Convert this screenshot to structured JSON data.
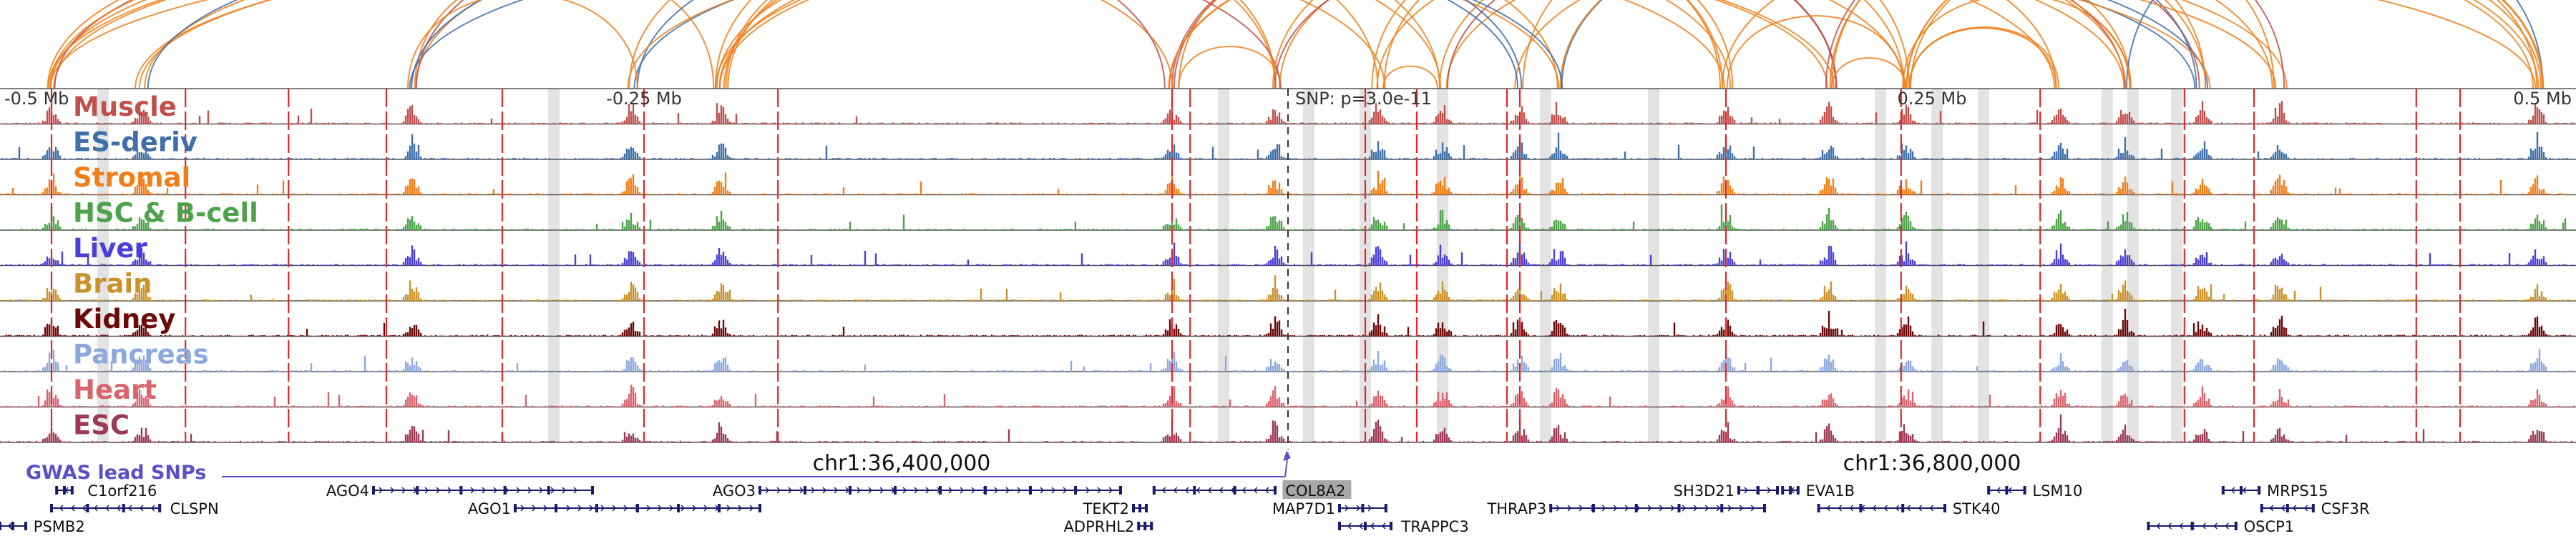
{
  "chart_data": {
    "type": "genome-browser",
    "region": {
      "chrom": "chr1",
      "start": 36050000,
      "end": 37050000
    },
    "axis_labels": [
      {
        "text": "-0.5 Mb",
        "pos": 36050000
      },
      {
        "text": "-0.25 Mb",
        "pos": 36300000
      },
      {
        "text": "0.25 Mb",
        "pos": 36800000
      },
      {
        "text": "0.5 Mb",
        "pos": 37050000
      }
    ],
    "coordinate_labels": [
      {
        "text": "chr1:36,400,000",
        "pos": 36400000
      },
      {
        "text": "chr1:36,800,000",
        "pos": 36800000
      }
    ],
    "snp": {
      "label": "SNP: p=3.0e-11",
      "pos": 36550000
    },
    "gwas_label": "GWAS lead SNPs",
    "tracks": [
      {
        "name": "Muscle",
        "color": "#c0504d"
      },
      {
        "name": "ES-deriv",
        "color": "#3f6fa8"
      },
      {
        "name": "Stromal",
        "color": "#f07f1a"
      },
      {
        "name": "HSC & B-cell",
        "color": "#4ea24a"
      },
      {
        "name": "Liver",
        "color": "#4a3fd6"
      },
      {
        "name": "Brain",
        "color": "#c9922a"
      },
      {
        "name": "Kidney",
        "color": "#6b0a0a"
      },
      {
        "name": "Pancreas",
        "color": "#8fa8dc"
      },
      {
        "name": "Heart",
        "color": "#d9646e"
      },
      {
        "name": "ESC",
        "color": "#9c3a55"
      }
    ],
    "peak_hotspots": [
      36070000,
      36105000,
      36210000,
      36295000,
      36330000,
      36505000,
      36545000,
      36585000,
      36610000,
      36640000,
      36655000,
      36720000,
      36760000,
      36790000,
      36850000,
      36875000,
      36905000,
      36935000,
      37035000
    ],
    "red_marker_positions": [
      36070000,
      36122000,
      36162000,
      36200000,
      36245000,
      36300000,
      36352000,
      36505000,
      36512000,
      36580000,
      36600000,
      36635000,
      36640000,
      36720000,
      36788000,
      36842000,
      36898000,
      36925000,
      36988000,
      37005000
    ],
    "gray_highlight_positions": [
      36090000,
      36265000,
      36525000,
      36558000,
      36580000,
      36610000,
      36650000,
      36692000,
      36780000,
      36802000,
      36820000,
      36868000,
      36878000,
      36895000
    ],
    "loop_color_primary": "#f07f1a",
    "loop_color_secondary": "#c0504d",
    "loop_color_tertiary": "#3f6fa8",
    "genes": [
      {
        "name": "C1orf216",
        "start": 36072000,
        "end": 36078000,
        "row": 1,
        "strand": "-",
        "label_at": "right",
        "label_gap": 6000
      },
      {
        "name": "AGO4",
        "start": 36195000,
        "end": 36280000,
        "row": 1,
        "strand": "+",
        "label_at": "left"
      },
      {
        "name": "AGO3",
        "start": 36345000,
        "end": 36485000,
        "row": 1,
        "strand": "+",
        "label_at": "left"
      },
      {
        "name": "COL8A2",
        "start": 36498000,
        "end": 36545000,
        "row": 1,
        "strand": "-",
        "label_at": "right",
        "label_gap": 4000,
        "highlight": true
      },
      {
        "name": "SH3D21",
        "start": 36725000,
        "end": 36740000,
        "row": 1,
        "strand": "+",
        "label_at": "left"
      },
      {
        "name": "EVA1B",
        "start": 36742000,
        "end": 36748000,
        "row": 1,
        "strand": "-",
        "label_at": "right",
        "label_gap": 3000
      },
      {
        "name": "LSM10",
        "start": 36822000,
        "end": 36836000,
        "row": 1,
        "strand": "-",
        "label_at": "right",
        "label_gap": 3000
      },
      {
        "name": "MRPS15",
        "start": 36913000,
        "end": 36927000,
        "row": 1,
        "strand": "-",
        "label_at": "right",
        "label_gap": 3000
      },
      {
        "name": "CLSPN",
        "start": 36070000,
        "end": 36112000,
        "row": 2,
        "strand": "-",
        "label_at": "right",
        "label_gap": 4000
      },
      {
        "name": "AGO1",
        "start": 36250000,
        "end": 36345000,
        "row": 2,
        "strand": "+",
        "label_at": "left"
      },
      {
        "name": "TEKT2",
        "start": 36490000,
        "end": 36495000,
        "row": 2,
        "strand": "+",
        "label_at": "left"
      },
      {
        "name": "MAP7D1",
        "start": 36570000,
        "end": 36588000,
        "row": 2,
        "strand": "+",
        "label_at": "left"
      },
      {
        "name": "THRAP3",
        "start": 36652000,
        "end": 36735000,
        "row": 2,
        "strand": "+",
        "label_at": "left"
      },
      {
        "name": "STK40",
        "start": 36756000,
        "end": 36805000,
        "row": 2,
        "strand": "-",
        "label_at": "right",
        "label_gap": 3000
      },
      {
        "name": "CSF3R",
        "start": 36928000,
        "end": 36948000,
        "row": 2,
        "strand": "-",
        "label_at": "right",
        "label_gap": 3000
      },
      {
        "name": "PSMB2",
        "start": 35820000,
        "end": 36060000,
        "row": 3,
        "strand": "-",
        "label_at": "right",
        "label_gap": 3000
      },
      {
        "name": "ADPRHL2",
        "start": 36492000,
        "end": 36497000,
        "row": 3,
        "strand": "+",
        "label_at": "left"
      },
      {
        "name": "TRAPPC3",
        "start": 36570000,
        "end": 36590000,
        "row": 3,
        "strand": "-",
        "label_at": "right",
        "label_gap": 4000
      },
      {
        "name": "OSCP1",
        "start": 36884000,
        "end": 36918000,
        "row": 3,
        "strand": "-",
        "label_at": "right",
        "label_gap": 3000
      }
    ]
  }
}
